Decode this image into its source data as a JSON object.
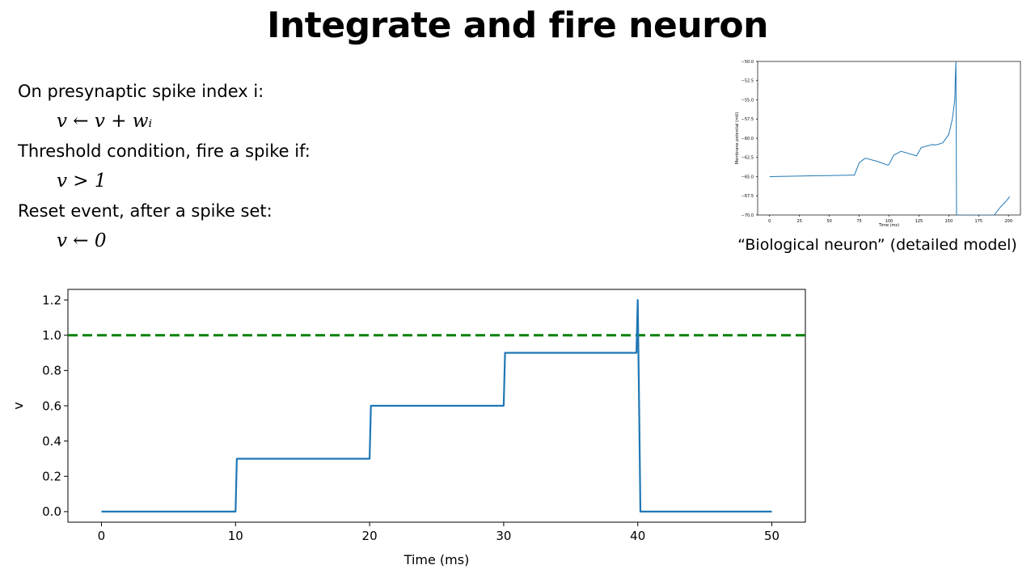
{
  "slide": {
    "title": "Integrate and fire neuron",
    "rules": [
      {
        "label": "On presynaptic spike index i:",
        "equation": "v ← v + wᵢ"
      },
      {
        "label": "Threshold condition, fire a spike if:",
        "equation": "v > 1"
      },
      {
        "label": "Reset event, after a spike set:",
        "equation": "v ← 0"
      }
    ],
    "bio_caption": "“Biological neuron” (detailed model)"
  },
  "chart_data": [
    {
      "id": "main",
      "type": "line",
      "title": "",
      "xlabel": "Time (ms)",
      "ylabel": "v",
      "xlim": [
        -2.5,
        52.5
      ],
      "ylim": [
        -0.06,
        1.26
      ],
      "xticks": [
        0,
        10,
        20,
        30,
        40,
        50
      ],
      "yticks": [
        0.0,
        0.2,
        0.4,
        0.6,
        0.8,
        1.0,
        1.2
      ],
      "ytick_labels": [
        "0.0",
        "0.2",
        "0.4",
        "0.6",
        "0.8",
        "1.0",
        "1.2"
      ],
      "grid": false,
      "threshold": {
        "y": 1.0,
        "color": "#008000",
        "style": "dashed"
      },
      "series": [
        {
          "color": "#1f77b4",
          "x": [
            0,
            10,
            10.1,
            20,
            20.1,
            30,
            30.1,
            39.9,
            40.0,
            40.1,
            40.2,
            50
          ],
          "y": [
            0,
            0,
            0.3,
            0.3,
            0.6,
            0.6,
            0.9,
            0.9,
            1.2,
            0.6,
            0,
            0
          ]
        }
      ]
    },
    {
      "id": "bio",
      "type": "line",
      "title": "",
      "xlabel": "Time (ms)",
      "ylabel": "Membrane potential (mV)",
      "xlim": [
        -10,
        210
      ],
      "ylim": [
        -70,
        -50
      ],
      "xticks": [
        0,
        25,
        50,
        75,
        100,
        125,
        150,
        175,
        200
      ],
      "yticks": [
        -70.0,
        -67.5,
        -65.0,
        -62.5,
        -60.0,
        -57.5,
        -55.0,
        -52.5,
        -50.0
      ],
      "ytick_labels": [
        "−70.0",
        "−67.5",
        "−65.0",
        "−62.5",
        "−60.0",
        "−57.5",
        "−55.0",
        "−52.5",
        "−50.0"
      ],
      "grid": false,
      "series": [
        {
          "color": "#1f77b4",
          "x": [
            0,
            70,
            71,
            75,
            80,
            90,
            99,
            100,
            104,
            110,
            121,
            123,
            127,
            137,
            138,
            141,
            145,
            150,
            153,
            155,
            155.5,
            156,
            156.5,
            157,
            188,
            193,
            198,
            201
          ],
          "y": [
            -65,
            -64.8,
            -64.8,
            -63.2,
            -62.6,
            -63,
            -63.5,
            -63.4,
            -62.2,
            -61.7,
            -62.2,
            -62.3,
            -61.2,
            -60.8,
            -60.9,
            -60.8,
            -60.6,
            -59.5,
            -57.5,
            -55,
            -52,
            -50,
            -70,
            -70,
            -70,
            -69,
            -68.2,
            -67.6
          ]
        }
      ]
    }
  ]
}
